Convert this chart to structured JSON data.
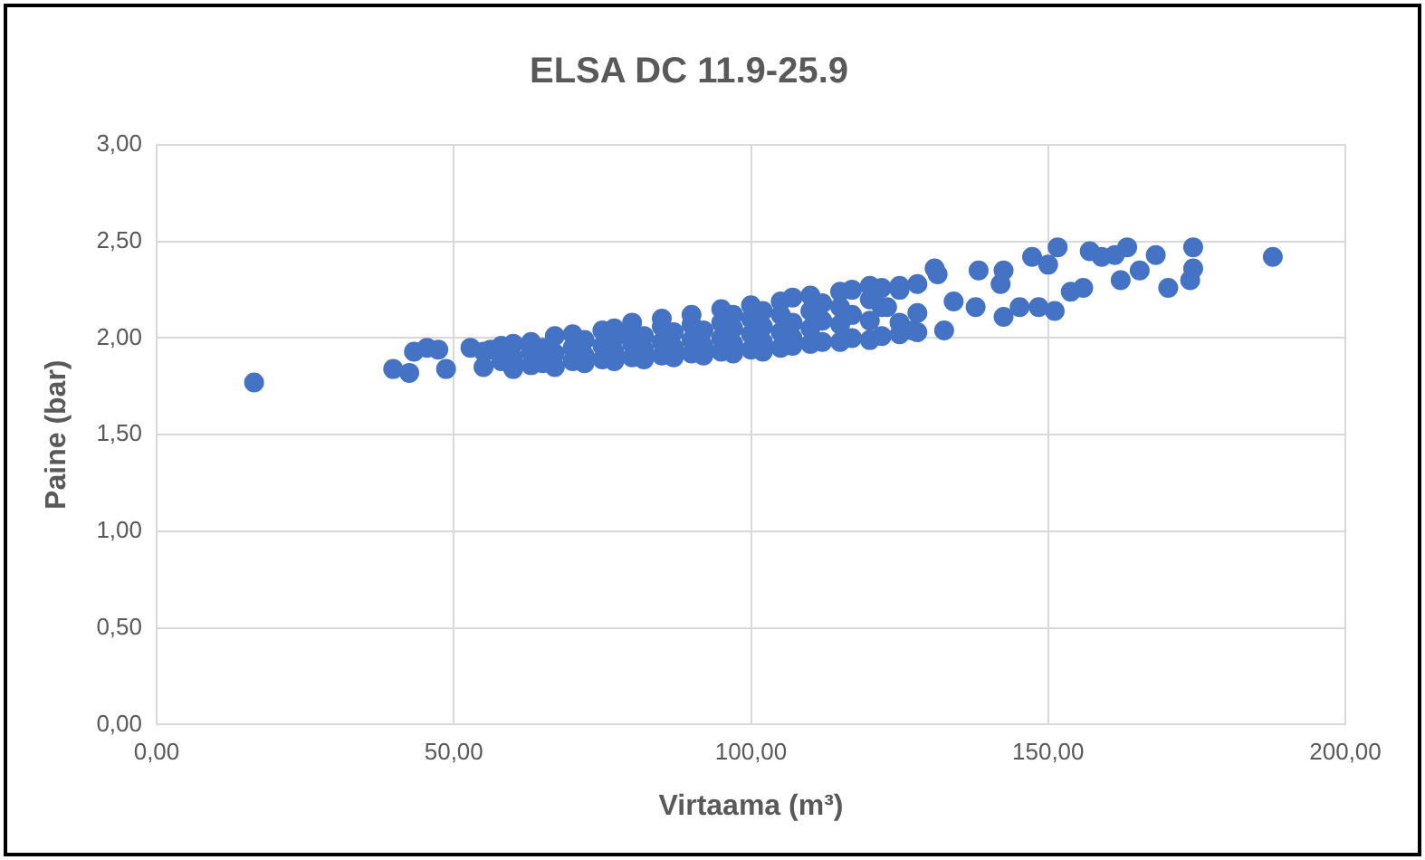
{
  "chart_data": {
    "type": "scatter",
    "title": "ELSA DC 11.9-25.9",
    "xlabel": "Virtaama (m³)",
    "ylabel": "Paine (bar)",
    "xlim": [
      0,
      200
    ],
    "ylim": [
      0,
      3
    ],
    "xticks": [
      {
        "value": 0,
        "label": "0,00"
      },
      {
        "value": 50,
        "label": "50,00"
      },
      {
        "value": 100,
        "label": "100,00"
      },
      {
        "value": 150,
        "label": "150,00"
      },
      {
        "value": 200,
        "label": "200,00"
      }
    ],
    "yticks": [
      {
        "value": 0,
        "label": "0,00"
      },
      {
        "value": 0.5,
        "label": "0,50"
      },
      {
        "value": 1,
        "label": "1,00"
      },
      {
        "value": 1.5,
        "label": "1,50"
      },
      {
        "value": 2,
        "label": "2,00"
      },
      {
        "value": 2.5,
        "label": "2,50"
      },
      {
        "value": 3,
        "label": "3,00"
      }
    ],
    "grid": true,
    "legend": false,
    "marker": "circle",
    "series": [
      {
        "color": "#4472c4",
        "x": [
          16.4,
          39.8,
          42.5,
          43.3,
          45.5,
          47.4,
          48.7,
          52.8,
          56.2,
          55,
          55,
          58,
          58,
          60,
          60,
          60,
          63,
          63,
          63,
          65,
          65,
          67,
          67,
          67,
          70,
          70,
          70,
          72,
          72,
          72,
          75,
          75,
          75,
          77,
          77,
          77,
          77,
          80,
          80,
          80,
          80,
          82,
          82,
          82,
          85,
          85,
          85,
          85,
          87,
          87,
          87,
          90,
          90,
          90,
          90,
          92,
          92,
          92,
          95,
          95,
          95,
          95,
          97,
          97,
          97,
          97,
          100,
          100,
          100,
          100,
          102,
          102,
          102,
          102,
          105,
          105,
          105,
          105,
          107,
          107,
          107,
          107,
          110,
          110,
          110,
          110,
          112,
          112,
          112,
          115,
          115,
          115,
          115,
          117,
          117,
          117,
          120,
          120,
          120,
          120,
          122,
          122,
          122,
          125,
          125,
          125,
          125,
          128,
          128,
          128,
          130.9,
          131.4,
          122.9,
          127.1,
          132.5,
          134.1,
          138.3,
          142.5,
          142.0,
          137.8,
          142.5,
          145.2,
          148.4,
          147.3,
          150,
          151.6,
          151.1,
          153.8,
          155.9,
          157,
          159,
          161.2,
          163.3,
          162.2,
          165.4,
          168.1,
          170.2,
          174.4,
          174.4,
          173.9,
          187.8
        ],
        "values": [
          1.77,
          1.84,
          1.82,
          1.93,
          1.95,
          1.94,
          1.84,
          1.95,
          1.94,
          1.85,
          1.93,
          1.88,
          1.96,
          1.84,
          1.9,
          1.97,
          1.86,
          1.93,
          1.98,
          1.87,
          1.95,
          1.85,
          1.92,
          2.01,
          1.88,
          1.95,
          2.02,
          1.87,
          1.91,
          1.99,
          1.89,
          1.96,
          2.04,
          1.88,
          1.93,
          2.0,
          2.05,
          1.9,
          1.97,
          2.03,
          2.08,
          1.89,
          1.94,
          2.01,
          1.91,
          1.98,
          2.06,
          2.1,
          1.9,
          1.95,
          2.03,
          1.92,
          1.99,
          2.07,
          2.12,
          1.91,
          1.96,
          2.04,
          1.93,
          2.0,
          2.08,
          2.15,
          1.92,
          1.97,
          2.05,
          2.12,
          1.94,
          2.02,
          2.1,
          2.17,
          1.93,
          1.98,
          2.06,
          2.14,
          1.95,
          2.03,
          2.12,
          2.19,
          1.96,
          2.0,
          2.08,
          2.21,
          1.97,
          2.05,
          2.14,
          2.22,
          1.98,
          2.09,
          2.18,
          1.98,
          2.07,
          2.16,
          2.24,
          2.0,
          2.12,
          2.25,
          1.99,
          2.09,
          2.2,
          2.27,
          2.01,
          2.16,
          2.26,
          2.02,
          2.08,
          2.25,
          2.27,
          2.03,
          2.13,
          2.28,
          2.36,
          2.33,
          2.16,
          2.04,
          2.04,
          2.19,
          2.35,
          2.35,
          2.28,
          2.16,
          2.11,
          2.16,
          2.16,
          2.42,
          2.38,
          2.47,
          2.14,
          2.24,
          2.26,
          2.45,
          2.42,
          2.43,
          2.47,
          2.3,
          2.35,
          2.43,
          2.26,
          2.47,
          2.36,
          2.3,
          2.42
        ]
      }
    ]
  }
}
